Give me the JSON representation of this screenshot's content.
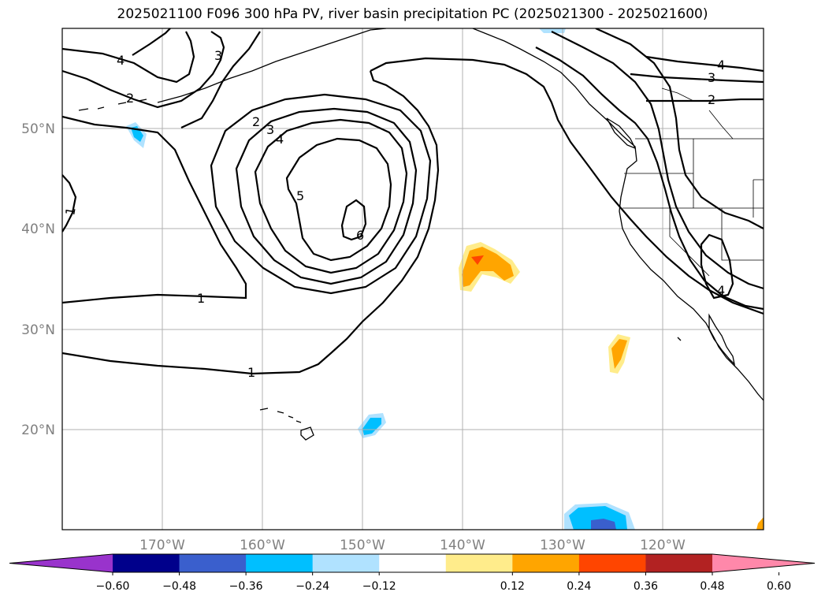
{
  "title": "2025021100 F096 300 hPa PV, river basin precipitation PC (2025021300 - 2025021600)",
  "axes": {
    "lat_labels": [
      "50°N",
      "40°N",
      "30°N",
      "20°N"
    ],
    "lon_labels": [
      "170°W",
      "160°W",
      "150°W",
      "140°W",
      "130°W",
      "120°W"
    ]
  },
  "contour_labels": [
    "1",
    "1",
    "1",
    "2",
    "2",
    "2",
    "3",
    "3",
    "3",
    "4",
    "4",
    "4",
    "4",
    "5",
    "6"
  ],
  "colorbar": {
    "ticks": [
      "−0.60",
      "−0.48",
      "−0.36",
      "−0.24",
      "−0.12",
      "0.12",
      "0.24",
      "0.36",
      "0.48",
      "0.60"
    ],
    "colors": [
      "#9933cc",
      "#00008b",
      "#3a5fcd",
      "#00bfff",
      "#b0e2ff",
      "#ffffff",
      "#ffec8b",
      "#ffa500",
      "#ff4500",
      "#b22222",
      "#ff88aa"
    ]
  },
  "colors": {
    "grid": "#b0b0b0",
    "contour": "#000000",
    "tick_label": "#808080"
  }
}
